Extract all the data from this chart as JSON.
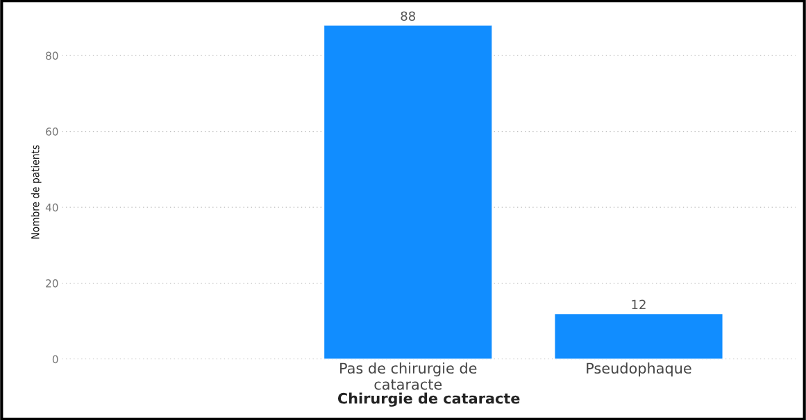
{
  "chart_data": {
    "type": "bar",
    "xlabel": "Chirurgie de cataracte",
    "ylabel": "Nombre de patients",
    "categories": [
      "Pas de chirurgie de\ncataracte",
      "Pseudophaque"
    ],
    "values": [
      88,
      12
    ],
    "color": "#118dff",
    "ylim": [
      0,
      88
    ],
    "yticks": [
      0,
      20,
      40,
      60,
      80
    ],
    "grid": "y",
    "data_labels": true
  }
}
